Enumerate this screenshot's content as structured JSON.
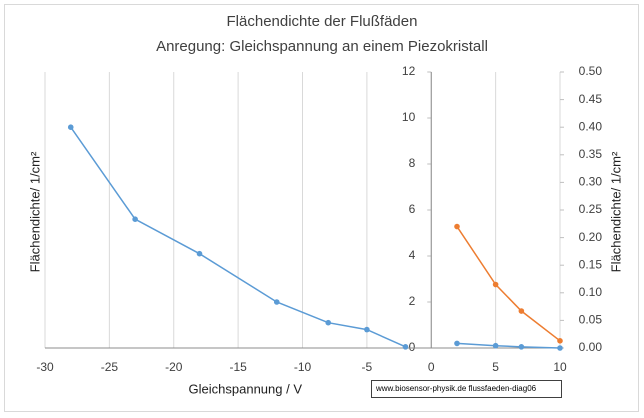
{
  "chart_data": {
    "type": "line",
    "title": "Flächendichte der Flußfäden",
    "subtitle": "Anregung:  Gleichspannung  an einem Piezokristall",
    "x_label": "Gleichspannung / V",
    "y_label": "Flächendichte/ 1/cm²",
    "y2_label": "Flächendichte/ 1/cm²",
    "annotation": "www.biosensor-physik.de  flussfaeden-diag06",
    "xlim": [
      -30,
      10
    ],
    "xticks": [
      -30,
      -25,
      -20,
      -15,
      -10,
      -5,
      0,
      5,
      10
    ],
    "ylim": [
      0,
      12
    ],
    "yticks": [
      0,
      2,
      4,
      6,
      8,
      10,
      12
    ],
    "y2lim": [
      0,
      0.5
    ],
    "y2ticks": [
      {
        "value": 0,
        "label": "0.00"
      },
      {
        "value": 0.05,
        "label": "0.05"
      },
      {
        "value": 0.1,
        "label": "0.10"
      },
      {
        "value": 0.15,
        "label": "0.15"
      },
      {
        "value": 0.2,
        "label": "0.20"
      },
      {
        "value": 0.25,
        "label": "0.25"
      },
      {
        "value": 0.3,
        "label": "0.30"
      },
      {
        "value": 0.35,
        "label": "0.35"
      },
      {
        "value": 0.4,
        "label": "0.40"
      },
      {
        "value": 0.45,
        "label": "0.45"
      },
      {
        "value": 0.5,
        "label": "0.50"
      }
    ],
    "grid": true,
    "series": [
      {
        "color": "#5b9bd5",
        "x": [
          -28,
          -23,
          -18,
          -12,
          -8,
          -5,
          -2
        ],
        "values": [
          9.6,
          5.6,
          4.1,
          2.0,
          1.1,
          0.8,
          0.05
        ]
      },
      {
        "color": "#5b9bd5",
        "x": [
          2,
          5,
          7,
          10
        ],
        "values": [
          0.2,
          0.1,
          0.05,
          0
        ]
      },
      {
        "color": "#ed7d31",
        "axis": "y2",
        "x": [
          2,
          5,
          7,
          10
        ],
        "values": [
          0.22,
          0.115,
          0.067,
          0.013
        ]
      }
    ]
  }
}
